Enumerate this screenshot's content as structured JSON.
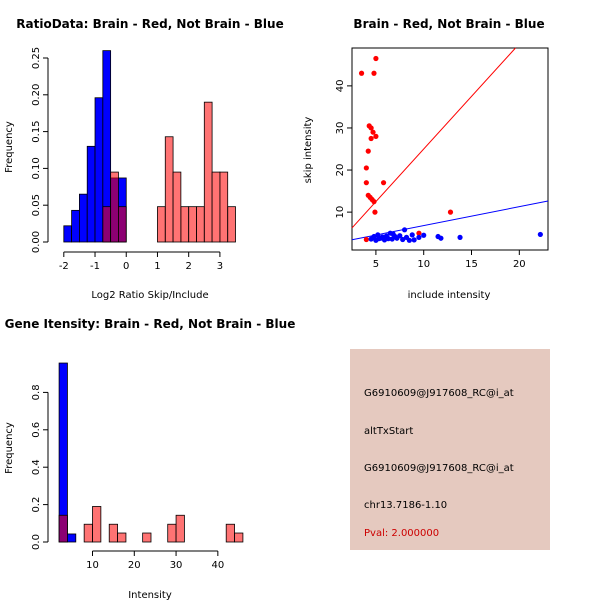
{
  "colors": {
    "red": "#ff0000",
    "blue": "#0000ff",
    "overlap": "#7f007f",
    "info_bg": "#e5c9bf",
    "pval": "#cc0000"
  },
  "chart_data": [
    {
      "type": "bar",
      "id": "ratio-hist",
      "title": "RatioData: Brain - Red, Not Brain - Blue",
      "xlabel": "Log2 Ratio Skip/Include",
      "ylabel": "Frequency",
      "xlim": [
        -2.25,
        3.9
      ],
      "ylim": [
        0,
        0.25
      ],
      "xticks": [
        -2,
        -1,
        0,
        1,
        2,
        3
      ],
      "yticks": [
        0.0,
        0.05,
        0.1,
        0.15,
        0.2,
        0.25
      ],
      "bin_start": -2.0,
      "bin_width": 0.25,
      "series": [
        {
          "name": "Not Brain",
          "color": "blue",
          "values": [
            0.022,
            0.043,
            0.065,
            0.13,
            0.196,
            0.26,
            0.087,
            0.087,
            0,
            0,
            0,
            0,
            0,
            0,
            0,
            0,
            0,
            0,
            0,
            0,
            0,
            0,
            0,
            0
          ]
        },
        {
          "name": "Brain",
          "color": "red",
          "values": [
            0,
            0,
            0,
            0,
            0,
            0.048,
            0.095,
            0.048,
            0,
            0,
            0,
            0,
            0.048,
            0.143,
            0.095,
            0.048,
            0.048,
            0.048,
            0.19,
            0.095,
            0.095,
            0.048,
            0,
            0
          ]
        }
      ]
    },
    {
      "type": "scatter",
      "id": "intensity-scatter",
      "title": "Brain - Red, Not Brain - Blue",
      "xlabel": "include intensity",
      "ylabel": "skip intensity",
      "xlim": [
        2.5,
        23
      ],
      "ylim": [
        1,
        49
      ],
      "xticks": [
        5,
        10,
        15,
        20
      ],
      "yticks": [
        10,
        20,
        30,
        40
      ],
      "series": [
        {
          "name": "Brain",
          "color": "red",
          "fit": [
            0,
            2.5
          ],
          "points": [
            [
              3.5,
              43
            ],
            [
              5,
              46.5
            ],
            [
              4.8,
              43
            ],
            [
              4.3,
              30.5
            ],
            [
              4.5,
              30
            ],
            [
              4.7,
              29
            ],
            [
              5.0,
              28
            ],
            [
              4.5,
              27.5
            ],
            [
              4.2,
              24.5
            ],
            [
              4.0,
              20.5
            ],
            [
              4.0,
              17
            ],
            [
              5.8,
              17
            ],
            [
              4.2,
              14
            ],
            [
              4.4,
              13.5
            ],
            [
              4.6,
              13
            ],
            [
              4.8,
              12.5
            ],
            [
              4.9,
              10
            ],
            [
              12.8,
              10
            ],
            [
              9.5,
              5
            ],
            [
              4.0,
              3.5
            ]
          ]
        },
        {
          "name": "Not Brain",
          "color": "blue",
          "fit": [
            2.3,
            0.45
          ],
          "points": [
            [
              4.5,
              3.6
            ],
            [
              4.8,
              4.2
            ],
            [
              5.0,
              3.3
            ],
            [
              5.2,
              4.6
            ],
            [
              5.5,
              3.8
            ],
            [
              5.7,
              4.1
            ],
            [
              5.9,
              3.4
            ],
            [
              6.1,
              4.3
            ],
            [
              6.3,
              3.7
            ],
            [
              6.5,
              5.0
            ],
            [
              6.7,
              3.6
            ],
            [
              7.0,
              4.2
            ],
            [
              7.2,
              3.8
            ],
            [
              7.5,
              4.4
            ],
            [
              7.8,
              3.5
            ],
            [
              8.0,
              5.8
            ],
            [
              8.2,
              4.0
            ],
            [
              8.5,
              3.3
            ],
            [
              8.8,
              4.6
            ],
            [
              9.0,
              3.4
            ],
            [
              9.5,
              4.0
            ],
            [
              10.0,
              4.5
            ],
            [
              11.5,
              4.2
            ],
            [
              11.8,
              3.8
            ],
            [
              13.8,
              4.0
            ],
            [
              22.2,
              4.7
            ],
            [
              6.0,
              3.9
            ],
            [
              5.3,
              3.7
            ],
            [
              4.7,
              3.9
            ],
            [
              6.8,
              4.8
            ]
          ]
        }
      ]
    },
    {
      "type": "bar",
      "id": "gene-intensity-hist",
      "title": "Gene Itensity: Brain - Red, Not Brain - Blue",
      "xlabel": "Intensity",
      "ylabel": "Frequency",
      "xlim": [
        1.5,
        46.5
      ],
      "ylim": [
        0,
        1.0
      ],
      "xticks": [
        10,
        20,
        30,
        40
      ],
      "yticks": [
        0.0,
        0.2,
        0.4,
        0.6,
        0.8
      ],
      "bin_start": 2,
      "bin_width": 2,
      "series": [
        {
          "name": "Not Brain",
          "color": "blue",
          "values": [
            0.957,
            0.043,
            0,
            0,
            0,
            0,
            0,
            0,
            0,
            0,
            0,
            0,
            0,
            0,
            0,
            0,
            0,
            0,
            0,
            0,
            0,
            0
          ]
        },
        {
          "name": "Brain",
          "color": "red",
          "values": [
            0.143,
            0,
            0,
            0.095,
            0.19,
            0,
            0.095,
            0.048,
            0,
            0,
            0.048,
            0,
            0,
            0.095,
            0.143,
            0,
            0,
            0,
            0,
            0,
            0.095,
            0.048
          ]
        }
      ]
    }
  ],
  "info_panel": {
    "line1": "G6910609@J917608_RC@i_at",
    "line2": "altTxStart",
    "line3": "G6910609@J917608_RC@i_at",
    "line4": "chr13.7186-1.10",
    "pval": "Pval: 2.000000"
  }
}
